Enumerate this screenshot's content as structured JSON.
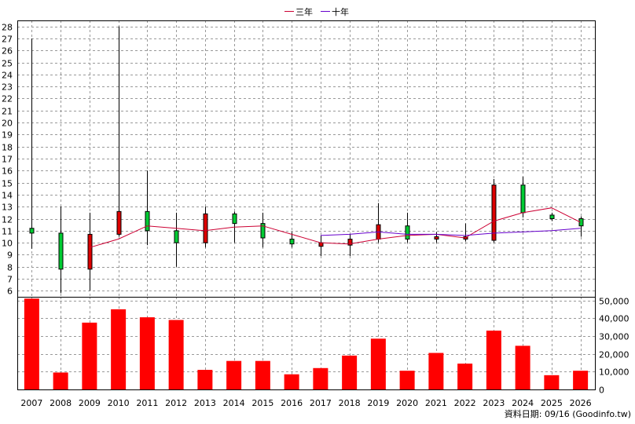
{
  "chart_data": {
    "type": "candlestick+bar",
    "legend": {
      "position": "top-center",
      "entries": [
        {
          "label": "三年",
          "color": "#cc0033"
        },
        {
          "label": "十年",
          "color": "#6600cc"
        }
      ]
    },
    "categories": [
      "2007",
      "2008",
      "2009",
      "2010",
      "2011",
      "2012",
      "2013",
      "2014",
      "2015",
      "2016",
      "2017",
      "2018",
      "2019",
      "2020",
      "2021",
      "2022",
      "2023",
      "2024",
      "2025",
      "2026"
    ],
    "price_axis": {
      "ylim": [
        5.5,
        28.5
      ],
      "ticks": [
        6,
        7,
        8,
        9,
        10,
        11,
        12,
        13,
        14,
        15,
        16,
        17,
        18,
        19,
        20,
        21,
        22,
        23,
        24,
        25,
        26,
        27,
        28
      ],
      "grid": true
    },
    "candles": [
      {
        "year": "2007",
        "open": 11.2,
        "close": 10.8,
        "high": 27.0,
        "low": 9.5,
        "color": "green"
      },
      {
        "year": "2008",
        "open": 10.8,
        "close": 7.8,
        "high": 13.0,
        "low": 5.8,
        "color": "green"
      },
      {
        "year": "2009",
        "open": 7.8,
        "close": 10.7,
        "high": 12.5,
        "low": 6.0,
        "color": "red"
      },
      {
        "year": "2010",
        "open": 10.7,
        "close": 12.6,
        "high": 28.0,
        "low": 10.5,
        "color": "red"
      },
      {
        "year": "2011",
        "open": 12.6,
        "close": 11.0,
        "high": 16.0,
        "low": 9.8,
        "color": "green"
      },
      {
        "year": "2012",
        "open": 11.0,
        "close": 10.0,
        "high": 12.5,
        "low": 8.0,
        "color": "green"
      },
      {
        "year": "2013",
        "open": 10.0,
        "close": 12.4,
        "high": 13.0,
        "low": 9.6,
        "color": "red"
      },
      {
        "year": "2014",
        "open": 12.4,
        "close": 11.6,
        "high": 12.6,
        "low": 10.0,
        "color": "green"
      },
      {
        "year": "2015",
        "open": 11.6,
        "close": 10.4,
        "high": 12.5,
        "low": 9.6,
        "color": "green"
      },
      {
        "year": "2016",
        "open": 10.3,
        "close": 9.9,
        "high": 10.9,
        "low": 9.6,
        "color": "green"
      },
      {
        "year": "2017",
        "open": 9.7,
        "close": 10.0,
        "high": 10.6,
        "low": 8.9,
        "color": "red"
      },
      {
        "year": "2018",
        "open": 9.8,
        "close": 10.3,
        "high": 10.7,
        "low": 8.9,
        "color": "red"
      },
      {
        "year": "2019",
        "open": 10.3,
        "close": 11.5,
        "high": 13.3,
        "low": 10.0,
        "color": "red"
      },
      {
        "year": "2020",
        "open": 11.4,
        "close": 10.3,
        "high": 12.5,
        "low": 10.0,
        "color": "green"
      },
      {
        "year": "2021",
        "open": 10.5,
        "close": 10.3,
        "high": 10.9,
        "low": 10.0,
        "color": "red"
      },
      {
        "year": "2022",
        "open": 10.3,
        "close": 10.5,
        "high": 11.6,
        "low": 10.1,
        "color": "red"
      },
      {
        "year": "2023",
        "open": 10.2,
        "close": 14.8,
        "high": 15.3,
        "low": 10.0,
        "color": "red"
      },
      {
        "year": "2024",
        "open": 14.8,
        "close": 12.5,
        "high": 15.5,
        "low": 12.1,
        "color": "green"
      },
      {
        "year": "2025",
        "open": 12.3,
        "close": 12.0,
        "high": 12.5,
        "low": 11.8,
        "color": "green"
      },
      {
        "year": "2026",
        "open": 11.4,
        "close": 12.0,
        "high": 12.2,
        "low": 10.5,
        "color": "green"
      }
    ],
    "series": [
      {
        "name": "三年",
        "color": "#cc0033",
        "values": [
          null,
          null,
          9.6,
          10.3,
          11.4,
          11.2,
          11.0,
          11.3,
          11.4,
          10.7,
          10.0,
          9.9,
          10.3,
          10.6,
          10.7,
          10.4,
          11.8,
          12.5,
          12.9,
          11.7
        ]
      },
      {
        "name": "十年",
        "color": "#6600cc",
        "values": [
          null,
          null,
          null,
          null,
          null,
          null,
          null,
          null,
          null,
          null,
          10.6,
          10.7,
          10.9,
          10.7,
          10.7,
          10.6,
          10.8,
          10.9,
          11.0,
          11.2
        ]
      }
    ],
    "volume_axis": {
      "ylim": [
        0,
        52000
      ],
      "ticks": [
        0,
        10000,
        20000,
        30000,
        40000,
        50000
      ],
      "tick_labels": [
        "0",
        "10,000",
        "20,000",
        "30,000",
        "40,000",
        "50,000"
      ]
    },
    "volume": {
      "color": "#ff0000",
      "values": [
        51000,
        9500,
        37500,
        45000,
        40500,
        39000,
        11000,
        16000,
        16000,
        8500,
        12000,
        19000,
        28500,
        10500,
        20500,
        14500,
        33000,
        24500,
        8000,
        10500
      ]
    }
  },
  "footer": {
    "note": "資料日期: 09/16  (Goodinfo.tw)"
  }
}
